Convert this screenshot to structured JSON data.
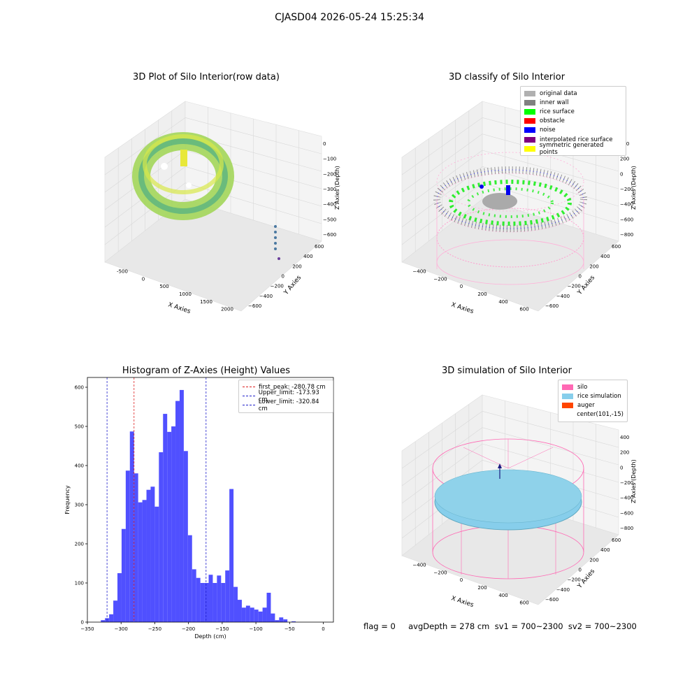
{
  "suptitle": "CJASD04 2026-05-24 15:25:34",
  "panels": {
    "raw": {
      "title": "3D Plot of Silo Interior(row data)",
      "xlabel": "X Axies",
      "ylabel": "Y Axies",
      "zlabel": "Z Axies (Depth)",
      "xticks": [
        "-500",
        "0",
        "500",
        "1000",
        "1500",
        "2000"
      ],
      "yticks": [
        "600",
        "400",
        "200",
        "0",
        "−200",
        "−400",
        "−600"
      ],
      "zticks": [
        "0",
        "−100",
        "−200",
        "−300",
        "−400",
        "−500",
        "−600"
      ]
    },
    "classify": {
      "title": "3D classify of Silo Interior",
      "xlabel": "X Axies",
      "ylabel": "Y Axies",
      "zlabel": "Z Axies (Depth)",
      "xticks": [
        "−400",
        "−200",
        "0",
        "200",
        "400",
        "600"
      ],
      "yticks": [
        "600",
        "400",
        "200",
        "0",
        "−200",
        "−400",
        "−600"
      ],
      "zticks": [
        "400",
        "200",
        "0",
        "−200",
        "−400",
        "−600",
        "−800"
      ],
      "legend": [
        {
          "label": "original data",
          "color": "#b0b0b0"
        },
        {
          "label": "inner wall",
          "color": "#808080"
        },
        {
          "label": "rice surface",
          "color": "#00ff00"
        },
        {
          "label": "obstacle",
          "color": "#ff0000"
        },
        {
          "label": "noise",
          "color": "#0000ff"
        },
        {
          "label": "interpolated rice surface",
          "color": "#800080"
        },
        {
          "label": "symmetric generated points",
          "color": "#ffff00"
        }
      ]
    },
    "simulation": {
      "title": "3D simulation of Silo Interior",
      "xlabel": "X Axies",
      "ylabel": "Y Axies",
      "zlabel": "Z Axies (Depth)",
      "xticks": [
        "−400",
        "−200",
        "0",
        "200",
        "400",
        "600"
      ],
      "yticks": [
        "600",
        "400",
        "200",
        "0",
        "−200",
        "−400",
        "−600"
      ],
      "zticks": [
        "400",
        "200",
        "0",
        "−200",
        "−400",
        "−600",
        "−800"
      ],
      "legend": [
        {
          "label": "silo",
          "color": "#ff69b4"
        },
        {
          "label": "rice simulation",
          "color": "#87ceeb"
        },
        {
          "label": "auger",
          "color": "#ff4500"
        },
        {
          "label": "center(101,-15)",
          "color": ""
        }
      ]
    }
  },
  "status_line": "flag = 0     avgDepth = 278 cm  sv1 = 700~2300  sv2 = 700~2300",
  "chart_data": [
    {
      "type": "bar",
      "title": "Histogram of Z-Axies (Height) Values",
      "xlabel": "Depth (cm)",
      "ylabel": "Frequency",
      "xlim": [
        -350,
        15
      ],
      "ylim": [
        0,
        625
      ],
      "xticks": [
        -350,
        -300,
        -250,
        -200,
        -150,
        -100,
        -50,
        0
      ],
      "yticks": [
        0,
        100,
        200,
        300,
        400,
        500,
        600
      ],
      "bin_start": -330,
      "bin_width": 6.15,
      "values": [
        5,
        10,
        20,
        55,
        125,
        238,
        387,
        487,
        380,
        306,
        312,
        338,
        346,
        295,
        434,
        532,
        486,
        500,
        565,
        593,
        437,
        222,
        135,
        113,
        100,
        100,
        121,
        100,
        119,
        100,
        132,
        340,
        90,
        57,
        37,
        42,
        37,
        32,
        27,
        37,
        75,
        22,
        5,
        12,
        7,
        0,
        2
      ],
      "bar_color": "#5050ff",
      "lines": [
        {
          "label": "first_peak: -280.78 cm",
          "x": -280.78,
          "color": "#dd2020"
        },
        {
          "label": "Upper_limit: -173.93 cm",
          "x": -173.93,
          "color": "#2020cc"
        },
        {
          "label": "Lower_limit: -320.84 cm",
          "x": -320.84,
          "color": "#2020cc"
        }
      ],
      "legend_position": "upper right"
    }
  ]
}
